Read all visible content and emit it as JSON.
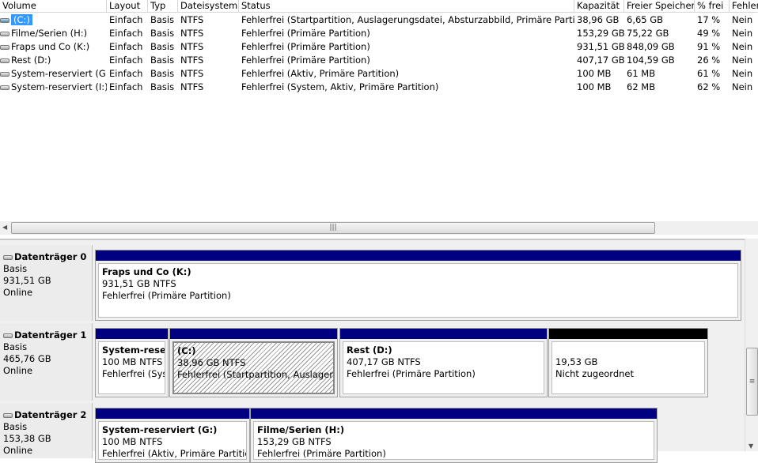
{
  "table": {
    "columns": [
      "Volume",
      "Layout",
      "Typ",
      "Dateisystem",
      "Status",
      "Kapazität",
      "Freier Speicher",
      "% frei",
      "Fehler"
    ],
    "rows": [
      {
        "volume": "(C:)",
        "layout": "Einfach",
        "typ": "Basis",
        "fs": "NTFS",
        "status": "Fehlerfrei (Startpartition, Auslagerungsdatei, Absturzabbild, Primäre Partition)",
        "kap": "38,96 GB",
        "frei": "6,65 GB",
        "pct": "17 %",
        "fehler": "Nein",
        "selected": true
      },
      {
        "volume": "Filme/Serien (H:)",
        "layout": "Einfach",
        "typ": "Basis",
        "fs": "NTFS",
        "status": "Fehlerfrei (Primäre Partition)",
        "kap": "153,29 GB",
        "frei": "75,22 GB",
        "pct": "49 %",
        "fehler": "Nein"
      },
      {
        "volume": "Fraps und Co (K:)",
        "layout": "Einfach",
        "typ": "Basis",
        "fs": "NTFS",
        "status": "Fehlerfrei (Primäre Partition)",
        "kap": "931,51 GB",
        "frei": "848,09 GB",
        "pct": "91 %",
        "fehler": "Nein"
      },
      {
        "volume": "Rest (D:)",
        "layout": "Einfach",
        "typ": "Basis",
        "fs": "NTFS",
        "status": "Fehlerfrei (Primäre Partition)",
        "kap": "407,17 GB",
        "frei": "104,59 GB",
        "pct": "26 %",
        "fehler": "Nein"
      },
      {
        "volume": "System-reserviert (G:)",
        "layout": "Einfach",
        "typ": "Basis",
        "fs": "NTFS",
        "status": "Fehlerfrei (Aktiv, Primäre Partition)",
        "kap": "100 MB",
        "frei": "61 MB",
        "pct": "61 %",
        "fehler": "Nein"
      },
      {
        "volume": "System-reserviert (I:)",
        "layout": "Einfach",
        "typ": "Basis",
        "fs": "NTFS",
        "status": "Fehlerfrei (System, Aktiv, Primäre Partition)",
        "kap": "100 MB",
        "frei": "62 MB",
        "pct": "62 %",
        "fehler": "Nein"
      }
    ]
  },
  "disks": [
    {
      "name": "Datenträger 0",
      "type": "Basis",
      "size": "931,51 GB",
      "state": "Online",
      "partitions": [
        {
          "name": "Fraps und Co  (K:)",
          "size": "931,51 GB NTFS",
          "status": "Fehlerfrei (Primäre Partition)"
        }
      ]
    },
    {
      "name": "Datenträger 1",
      "type": "Basis",
      "size": "465,76 GB",
      "state": "Online",
      "partitions": [
        {
          "name": "System-reserviert",
          "size": "100 MB NTFS",
          "status": "Fehlerfrei (System, Aktiv, Primäre Partition)"
        },
        {
          "name": "(C:)",
          "size": "38,96 GB NTFS",
          "status": "Fehlerfrei (Startpartition, Auslagerungsdatei, Absturzabbild, Primäre Partition)",
          "selected": true
        },
        {
          "name": "Rest  (D:)",
          "size": "407,17 GB NTFS",
          "status": "Fehlerfrei (Primäre Partition)"
        },
        {
          "name": "",
          "size": "19,53 GB",
          "status": "Nicht zugeordnet",
          "unallocated": true
        }
      ]
    },
    {
      "name": "Datenträger 2",
      "type": "Basis",
      "size": "153,38 GB",
      "state": "Online",
      "partitions": [
        {
          "name": "System-reserviert  (G:)",
          "size": "100 MB NTFS",
          "status": "Fehlerfrei (Aktiv, Primäre Partition)"
        },
        {
          "name": "Filme/Serien  (H:)",
          "size": "153,29 GB NTFS",
          "status": "Fehlerfrei (Primäre Partition)"
        }
      ]
    }
  ],
  "colors": {
    "primary": "#000080",
    "unallocated": "#000000",
    "selection": "#3399ff"
  }
}
